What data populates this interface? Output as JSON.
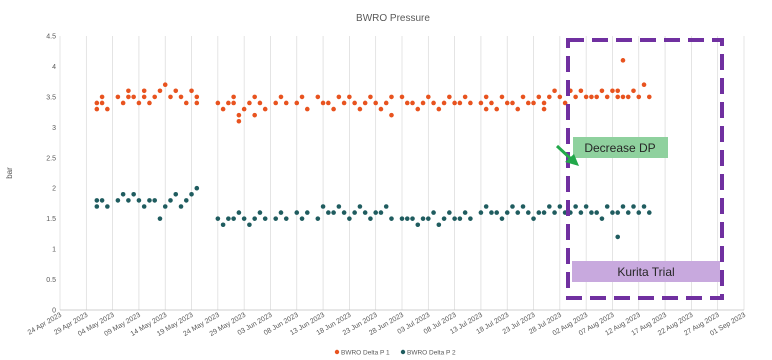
{
  "chart_data": {
    "type": "scatter",
    "title": "BWRO Pressure",
    "ylabel": "bar",
    "ylim": [
      0,
      4.5
    ],
    "yticks": [
      "0",
      "0.5",
      "1",
      "1.5",
      "2",
      "2.5",
      "3",
      "3.5",
      "4",
      "4.5"
    ],
    "xlim": [
      "2023-04-24",
      "2023-09-01"
    ],
    "xticks": [
      "24 Apr 2023",
      "29 Apr 2023",
      "04 May 2023",
      "09 May 2023",
      "14 May 2023",
      "19 May 2023",
      "24 May 2023",
      "29 May 2023",
      "03 Jun 2023",
      "08 Jun 2023",
      "13 Jun 2023",
      "18 Jun 2023",
      "23 Jun 2023",
      "28 Jun 2023",
      "03 Jul 2023",
      "08 Jul 2023",
      "13 Jul 2023",
      "18 Jul 2023",
      "23 Jul 2023",
      "28 Jul 2023",
      "02 Aug 2023",
      "07 Aug 2023",
      "12 Aug 2023",
      "17 Aug 2023",
      "22 Aug 2023",
      "27 Aug 2023",
      "01 Sep 2023"
    ],
    "grid": "vertical",
    "legend_position": "bottom",
    "series": [
      {
        "name": "BWRO Delta P 1",
        "color": "#e8531f",
        "points": [
          [
            "2023-05-01",
            3.4
          ],
          [
            "2023-05-01",
            3.3
          ],
          [
            "2023-05-02",
            3.5
          ],
          [
            "2023-05-02",
            3.4
          ],
          [
            "2023-05-03",
            3.3
          ],
          [
            "2023-05-05",
            3.5
          ],
          [
            "2023-05-06",
            3.4
          ],
          [
            "2023-05-07",
            3.5
          ],
          [
            "2023-05-07",
            3.6
          ],
          [
            "2023-05-08",
            3.5
          ],
          [
            "2023-05-09",
            3.4
          ],
          [
            "2023-05-10",
            3.6
          ],
          [
            "2023-05-10",
            3.5
          ],
          [
            "2023-05-11",
            3.4
          ],
          [
            "2023-05-12",
            3.5
          ],
          [
            "2023-05-13",
            3.6
          ],
          [
            "2023-05-14",
            3.7
          ],
          [
            "2023-05-15",
            3.5
          ],
          [
            "2023-05-16",
            3.6
          ],
          [
            "2023-05-17",
            3.5
          ],
          [
            "2023-05-18",
            3.4
          ],
          [
            "2023-05-19",
            3.6
          ],
          [
            "2023-05-20",
            3.5
          ],
          [
            "2023-05-20",
            3.4
          ],
          [
            "2023-05-24",
            3.4
          ],
          [
            "2023-05-25",
            3.3
          ],
          [
            "2023-05-26",
            3.4
          ],
          [
            "2023-05-27",
            3.4
          ],
          [
            "2023-05-27",
            3.5
          ],
          [
            "2023-05-28",
            3.2
          ],
          [
            "2023-05-28",
            3.1
          ],
          [
            "2023-05-29",
            3.3
          ],
          [
            "2023-05-30",
            3.4
          ],
          [
            "2023-05-31",
            3.5
          ],
          [
            "2023-05-31",
            3.2
          ],
          [
            "2023-06-01",
            3.4
          ],
          [
            "2023-06-02",
            3.3
          ],
          [
            "2023-06-04",
            3.4
          ],
          [
            "2023-06-05",
            3.5
          ],
          [
            "2023-06-06",
            3.4
          ],
          [
            "2023-06-08",
            3.4
          ],
          [
            "2023-06-09",
            3.5
          ],
          [
            "2023-06-10",
            3.3
          ],
          [
            "2023-06-12",
            3.5
          ],
          [
            "2023-06-13",
            3.4
          ],
          [
            "2023-06-14",
            3.4
          ],
          [
            "2023-06-15",
            3.3
          ],
          [
            "2023-06-16",
            3.5
          ],
          [
            "2023-06-17",
            3.4
          ],
          [
            "2023-06-18",
            3.5
          ],
          [
            "2023-06-19",
            3.4
          ],
          [
            "2023-06-20",
            3.3
          ],
          [
            "2023-06-21",
            3.4
          ],
          [
            "2023-06-22",
            3.5
          ],
          [
            "2023-06-23",
            3.4
          ],
          [
            "2023-06-24",
            3.3
          ],
          [
            "2023-06-25",
            3.4
          ],
          [
            "2023-06-26",
            3.5
          ],
          [
            "2023-06-26",
            3.2
          ],
          [
            "2023-06-28",
            3.5
          ],
          [
            "2023-06-29",
            3.4
          ],
          [
            "2023-06-30",
            3.4
          ],
          [
            "2023-07-01",
            3.3
          ],
          [
            "2023-07-02",
            3.4
          ],
          [
            "2023-07-03",
            3.5
          ],
          [
            "2023-07-04",
            3.4
          ],
          [
            "2023-07-05",
            3.3
          ],
          [
            "2023-07-06",
            3.4
          ],
          [
            "2023-07-07",
            3.5
          ],
          [
            "2023-07-08",
            3.4
          ],
          [
            "2023-07-09",
            3.4
          ],
          [
            "2023-07-10",
            3.5
          ],
          [
            "2023-07-11",
            3.4
          ],
          [
            "2023-07-13",
            3.4
          ],
          [
            "2023-07-14",
            3.5
          ],
          [
            "2023-07-14",
            3.3
          ],
          [
            "2023-07-15",
            3.4
          ],
          [
            "2023-07-16",
            3.3
          ],
          [
            "2023-07-17",
            3.5
          ],
          [
            "2023-07-18",
            3.4
          ],
          [
            "2023-07-19",
            3.4
          ],
          [
            "2023-07-20",
            3.3
          ],
          [
            "2023-07-21",
            3.5
          ],
          [
            "2023-07-22",
            3.4
          ],
          [
            "2023-07-23",
            3.4
          ],
          [
            "2023-07-24",
            3.5
          ],
          [
            "2023-07-25",
            3.4
          ],
          [
            "2023-07-25",
            3.3
          ],
          [
            "2023-07-26",
            3.5
          ],
          [
            "2023-07-27",
            3.6
          ],
          [
            "2023-07-28",
            3.5
          ],
          [
            "2023-07-29",
            3.4
          ],
          [
            "2023-07-30",
            3.6
          ],
          [
            "2023-07-31",
            3.5
          ],
          [
            "2023-08-01",
            3.6
          ],
          [
            "2023-08-02",
            3.5
          ],
          [
            "2023-08-03",
            3.5
          ],
          [
            "2023-08-04",
            3.5
          ],
          [
            "2023-08-05",
            3.6
          ],
          [
            "2023-08-06",
            3.5
          ],
          [
            "2023-08-07",
            3.6
          ],
          [
            "2023-08-08",
            3.5
          ],
          [
            "2023-08-08",
            3.6
          ],
          [
            "2023-08-09",
            4.1
          ],
          [
            "2023-08-09",
            3.5
          ],
          [
            "2023-08-10",
            3.5
          ],
          [
            "2023-08-11",
            3.6
          ],
          [
            "2023-08-12",
            3.5
          ],
          [
            "2023-08-13",
            3.7
          ],
          [
            "2023-08-14",
            3.5
          ]
        ]
      },
      {
        "name": "BWRO Delta P 2",
        "color": "#1f5c5f",
        "points": [
          [
            "2023-05-01",
            1.8
          ],
          [
            "2023-05-01",
            1.7
          ],
          [
            "2023-05-02",
            1.8
          ],
          [
            "2023-05-03",
            1.7
          ],
          [
            "2023-05-05",
            1.8
          ],
          [
            "2023-05-06",
            1.9
          ],
          [
            "2023-05-07",
            1.8
          ],
          [
            "2023-05-08",
            1.9
          ],
          [
            "2023-05-09",
            1.8
          ],
          [
            "2023-05-10",
            1.7
          ],
          [
            "2023-05-11",
            1.8
          ],
          [
            "2023-05-12",
            1.8
          ],
          [
            "2023-05-13",
            1.5
          ],
          [
            "2023-05-14",
            1.7
          ],
          [
            "2023-05-15",
            1.8
          ],
          [
            "2023-05-16",
            1.9
          ],
          [
            "2023-05-17",
            1.7
          ],
          [
            "2023-05-18",
            1.8
          ],
          [
            "2023-05-19",
            1.9
          ],
          [
            "2023-05-20",
            2.0
          ],
          [
            "2023-05-24",
            1.5
          ],
          [
            "2023-05-25",
            1.4
          ],
          [
            "2023-05-26",
            1.5
          ],
          [
            "2023-05-27",
            1.5
          ],
          [
            "2023-05-28",
            1.6
          ],
          [
            "2023-05-29",
            1.5
          ],
          [
            "2023-05-30",
            1.4
          ],
          [
            "2023-05-31",
            1.5
          ],
          [
            "2023-06-01",
            1.6
          ],
          [
            "2023-06-02",
            1.5
          ],
          [
            "2023-06-04",
            1.5
          ],
          [
            "2023-06-05",
            1.6
          ],
          [
            "2023-06-06",
            1.5
          ],
          [
            "2023-06-08",
            1.6
          ],
          [
            "2023-06-09",
            1.5
          ],
          [
            "2023-06-10",
            1.6
          ],
          [
            "2023-06-12",
            1.5
          ],
          [
            "2023-06-13",
            1.7
          ],
          [
            "2023-06-14",
            1.6
          ],
          [
            "2023-06-15",
            1.6
          ],
          [
            "2023-06-16",
            1.7
          ],
          [
            "2023-06-17",
            1.6
          ],
          [
            "2023-06-18",
            1.5
          ],
          [
            "2023-06-19",
            1.6
          ],
          [
            "2023-06-20",
            1.7
          ],
          [
            "2023-06-21",
            1.6
          ],
          [
            "2023-06-22",
            1.5
          ],
          [
            "2023-06-23",
            1.6
          ],
          [
            "2023-06-24",
            1.6
          ],
          [
            "2023-06-25",
            1.7
          ],
          [
            "2023-06-26",
            1.5
          ],
          [
            "2023-06-28",
            1.5
          ],
          [
            "2023-06-29",
            1.5
          ],
          [
            "2023-06-30",
            1.5
          ],
          [
            "2023-07-01",
            1.4
          ],
          [
            "2023-07-02",
            1.5
          ],
          [
            "2023-07-03",
            1.5
          ],
          [
            "2023-07-04",
            1.6
          ],
          [
            "2023-07-05",
            1.4
          ],
          [
            "2023-07-06",
            1.5
          ],
          [
            "2023-07-07",
            1.6
          ],
          [
            "2023-07-08",
            1.5
          ],
          [
            "2023-07-09",
            1.5
          ],
          [
            "2023-07-10",
            1.6
          ],
          [
            "2023-07-11",
            1.5
          ],
          [
            "2023-07-13",
            1.6
          ],
          [
            "2023-07-14",
            1.7
          ],
          [
            "2023-07-15",
            1.6
          ],
          [
            "2023-07-16",
            1.6
          ],
          [
            "2023-07-17",
            1.5
          ],
          [
            "2023-07-18",
            1.6
          ],
          [
            "2023-07-19",
            1.7
          ],
          [
            "2023-07-20",
            1.6
          ],
          [
            "2023-07-21",
            1.7
          ],
          [
            "2023-07-22",
            1.6
          ],
          [
            "2023-07-23",
            1.5
          ],
          [
            "2023-07-24",
            1.6
          ],
          [
            "2023-07-25",
            1.6
          ],
          [
            "2023-07-26",
            1.7
          ],
          [
            "2023-07-27",
            1.6
          ],
          [
            "2023-07-28",
            1.7
          ],
          [
            "2023-07-29",
            1.6
          ],
          [
            "2023-07-30",
            1.6
          ],
          [
            "2023-07-31",
            1.7
          ],
          [
            "2023-08-01",
            1.6
          ],
          [
            "2023-08-02",
            1.7
          ],
          [
            "2023-08-03",
            1.6
          ],
          [
            "2023-08-04",
            1.6
          ],
          [
            "2023-08-05",
            1.5
          ],
          [
            "2023-08-06",
            1.7
          ],
          [
            "2023-08-07",
            1.6
          ],
          [
            "2023-08-08",
            1.2
          ],
          [
            "2023-08-08",
            1.6
          ],
          [
            "2023-08-09",
            1.7
          ],
          [
            "2023-08-10",
            1.6
          ],
          [
            "2023-08-11",
            1.7
          ],
          [
            "2023-08-12",
            1.6
          ],
          [
            "2023-08-13",
            1.7
          ],
          [
            "2023-08-14",
            1.6
          ]
        ]
      }
    ],
    "annotations": [
      {
        "text": "Decrease DP",
        "fill": "#8fd19e"
      },
      {
        "text": "Kurita Trial",
        "fill": "#c8a9de"
      }
    ]
  }
}
